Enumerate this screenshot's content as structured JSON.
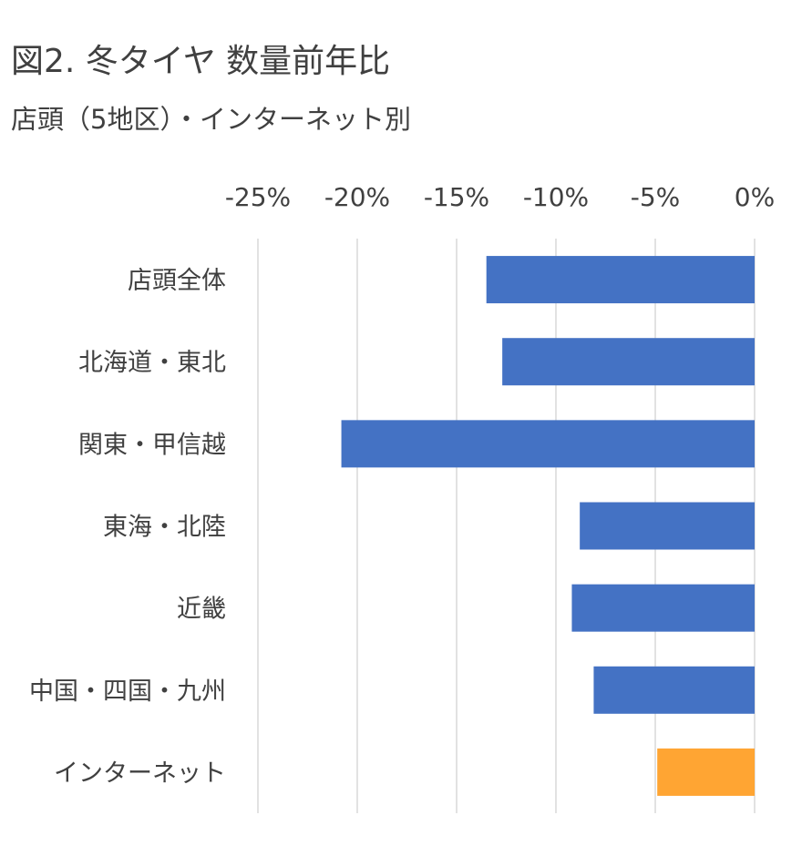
{
  "header": {
    "title": "図2. 冬タイヤ 数量前年比",
    "subtitle": "店頭（5地区）・インターネット別"
  },
  "chart_data": {
    "type": "bar",
    "orientation": "horizontal",
    "xlim": [
      -25,
      0
    ],
    "x_ticks": [
      -25,
      -20,
      -15,
      -10,
      -5,
      0
    ],
    "x_tick_labels": [
      "-25%",
      "-20%",
      "-15%",
      "-10%",
      "-5%",
      "0%"
    ],
    "x_axis_position": "top",
    "grid": true,
    "categories": [
      "店頭全体",
      "北海道・東北",
      "関東・甲信越",
      "東海・北陸",
      "近畿",
      "中国・四国・九州",
      "インターネット"
    ],
    "values": [
      -13.5,
      -12.7,
      -20.8,
      -8.8,
      -9.2,
      -8.1,
      -4.9
    ],
    "colors": [
      "#4472C4",
      "#4472C4",
      "#4472C4",
      "#4472C4",
      "#4472C4",
      "#4472C4",
      "#FFA533"
    ]
  },
  "style": {
    "grid_color": "#d9d9d9",
    "bar_color": "#4472C4",
    "highlight_color": "#FFA533"
  }
}
